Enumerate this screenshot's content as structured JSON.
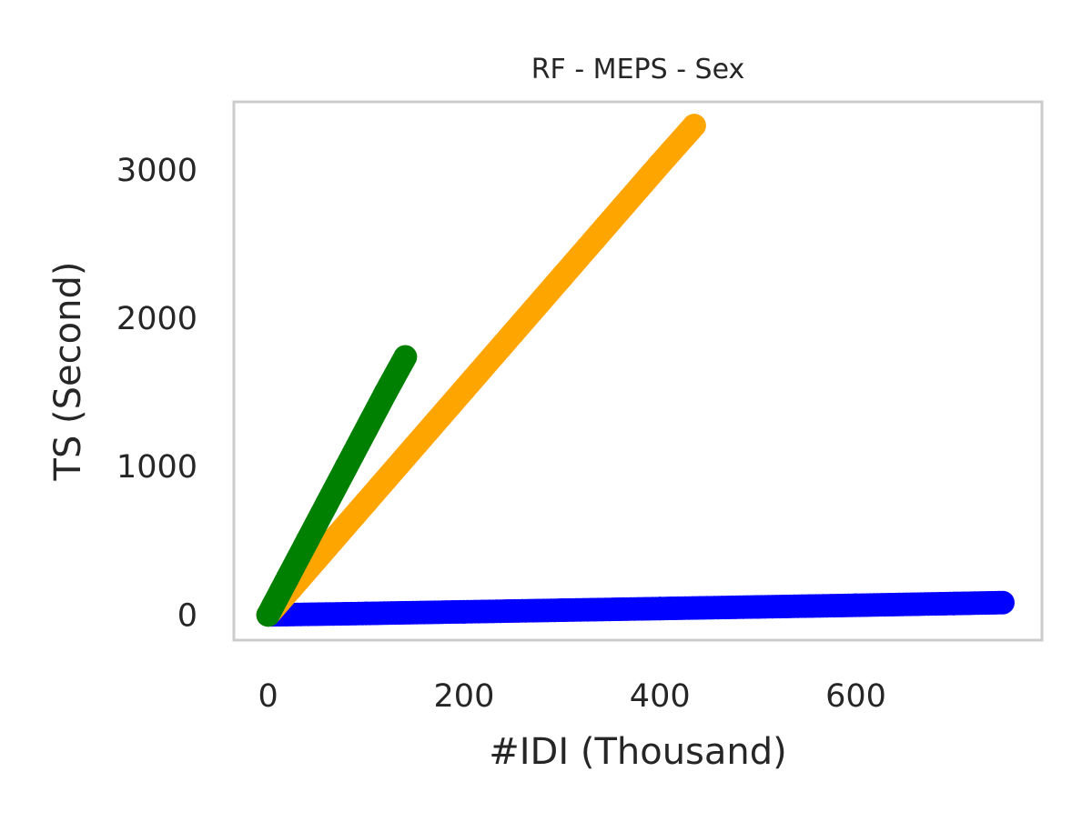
{
  "chart_data": {
    "type": "scatter",
    "title": "RF - MEPS - Sex",
    "xlabel": "#IDI (Thousand)",
    "ylabel": "TS (Second)",
    "xlim": [
      -35,
      790
    ],
    "ylim": [
      -170,
      3460
    ],
    "x_ticks": [
      0,
      200,
      400,
      600
    ],
    "y_ticks": [
      0,
      1000,
      2000,
      3000
    ],
    "x_tick_labels": [
      "0",
      "200",
      "400",
      "600"
    ],
    "y_tick_labels": [
      "0",
      "1000",
      "2000",
      "3000"
    ],
    "grid": false,
    "legend": "none",
    "frame_color": "#cccccc",
    "series": [
      {
        "color": "#0000ff",
        "x": [
          0,
          100,
          200,
          300,
          400,
          500,
          600,
          700,
          750
        ],
        "y": [
          0,
          10,
          21,
          32,
          43,
          54,
          65,
          77,
          83
        ]
      },
      {
        "color": "#ffa500",
        "x": [
          0,
          50,
          100,
          150,
          200,
          250,
          300,
          350,
          400,
          435
        ],
        "y": [
          0,
          380,
          760,
          1140,
          1520,
          1900,
          2280,
          2660,
          3040,
          3300
        ]
      },
      {
        "color": "#008000",
        "x": [
          0,
          20,
          40,
          60,
          80,
          100,
          120,
          140
        ],
        "y": [
          0,
          250,
          500,
          750,
          1000,
          1250,
          1500,
          1740
        ]
      }
    ]
  }
}
